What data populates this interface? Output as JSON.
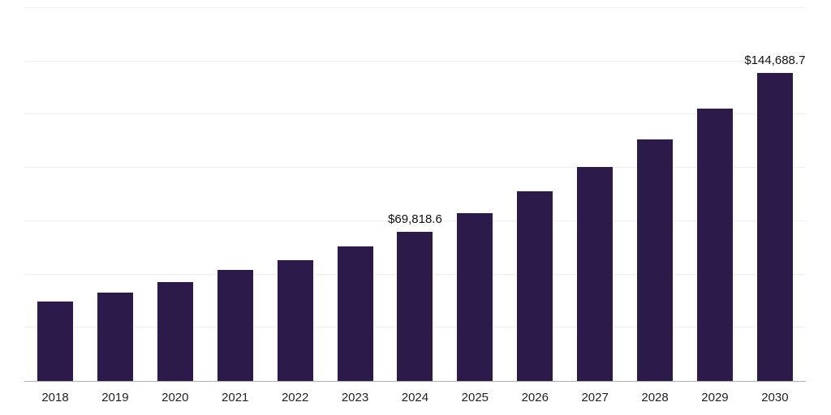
{
  "chart_data": {
    "type": "bar",
    "title": "",
    "xlabel": "",
    "ylabel": "",
    "categories": [
      "2018",
      "2019",
      "2020",
      "2021",
      "2022",
      "2023",
      "2024",
      "2025",
      "2026",
      "2027",
      "2028",
      "2029",
      "2030"
    ],
    "values": [
      37300,
      41500,
      46400,
      52100,
      56700,
      63100,
      69818.6,
      78800,
      88900,
      100400,
      113300,
      127900,
      144688.7
    ],
    "annotations": [
      {
        "index": 6,
        "text": "$69,818.6"
      },
      {
        "index": 12,
        "text": "$144,688.7"
      }
    ],
    "ylim": [
      0,
      175000
    ],
    "gridline_step": 25000,
    "grid_on": true,
    "legend": "none",
    "bar_color": "#2B1A4A",
    "grid_color": "#f0f0f0",
    "axis_color": "#b0b0b0",
    "tick_label_color": "#222222",
    "value_label_color": "#111111"
  }
}
